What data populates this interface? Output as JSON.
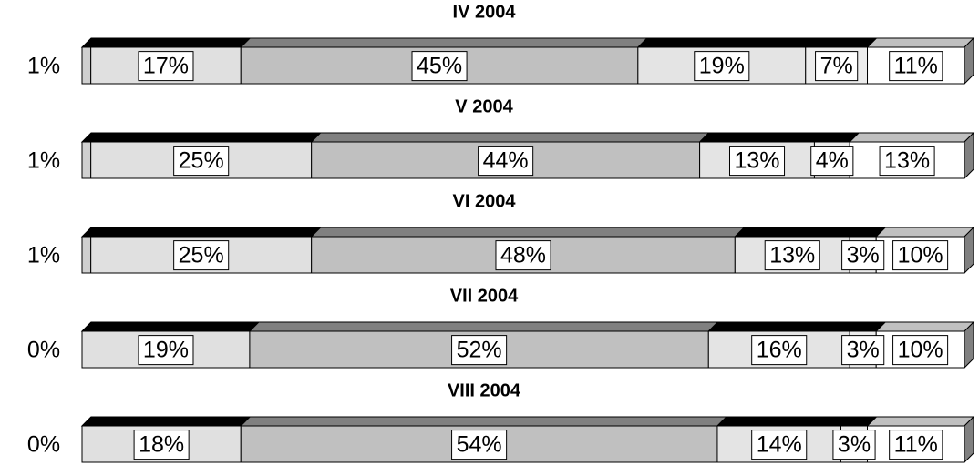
{
  "chart_data": [
    {
      "type": "stacked_bar",
      "title": "IV 2004",
      "values": [
        1,
        17,
        45,
        19,
        7,
        11
      ],
      "value_labels": [
        "1%",
        "17%",
        "45%",
        "19%",
        "7%",
        "11%"
      ],
      "colors": [
        "#d0d0d0",
        "#e0e0e0",
        "#c0c0c0",
        "#e4e4e4",
        "#ececec",
        "#ffffff"
      ],
      "xlim": [
        0,
        100
      ]
    },
    {
      "type": "stacked_bar",
      "title": "V 2004",
      "values": [
        1,
        25,
        44,
        13,
        4,
        13
      ],
      "value_labels": [
        "1%",
        "25%",
        "44%",
        "13%",
        "4%",
        "13%"
      ],
      "colors": [
        "#d0d0d0",
        "#e0e0e0",
        "#c0c0c0",
        "#e4e4e4",
        "#ececec",
        "#ffffff"
      ],
      "xlim": [
        0,
        100
      ]
    },
    {
      "type": "stacked_bar",
      "title": "VI 2004",
      "values": [
        1,
        25,
        48,
        13,
        3,
        10
      ],
      "value_labels": [
        "1%",
        "25%",
        "48%",
        "13%",
        "3%",
        "10%"
      ],
      "colors": [
        "#d0d0d0",
        "#e0e0e0",
        "#c0c0c0",
        "#e4e4e4",
        "#ececec",
        "#ffffff"
      ],
      "xlim": [
        0,
        100
      ]
    },
    {
      "type": "stacked_bar",
      "title": "VII 2004",
      "values": [
        0,
        19,
        52,
        16,
        3,
        10
      ],
      "value_labels": [
        "0%",
        "19%",
        "52%",
        "16%",
        "3%",
        "10%"
      ],
      "colors": [
        "#d0d0d0",
        "#e0e0e0",
        "#c0c0c0",
        "#e4e4e4",
        "#ececec",
        "#ffffff"
      ],
      "xlim": [
        0,
        100
      ]
    },
    {
      "type": "stacked_bar",
      "title": "VIII 2004",
      "values": [
        0,
        18,
        54,
        14,
        3,
        11
      ],
      "value_labels": [
        "0%",
        "18%",
        "54%",
        "14%",
        "3%",
        "11%"
      ],
      "colors": [
        "#d0d0d0",
        "#e0e0e0",
        "#c0c0c0",
        "#e4e4e4",
        "#ececec",
        "#ffffff"
      ],
      "xlim": [
        0,
        100
      ]
    }
  ]
}
